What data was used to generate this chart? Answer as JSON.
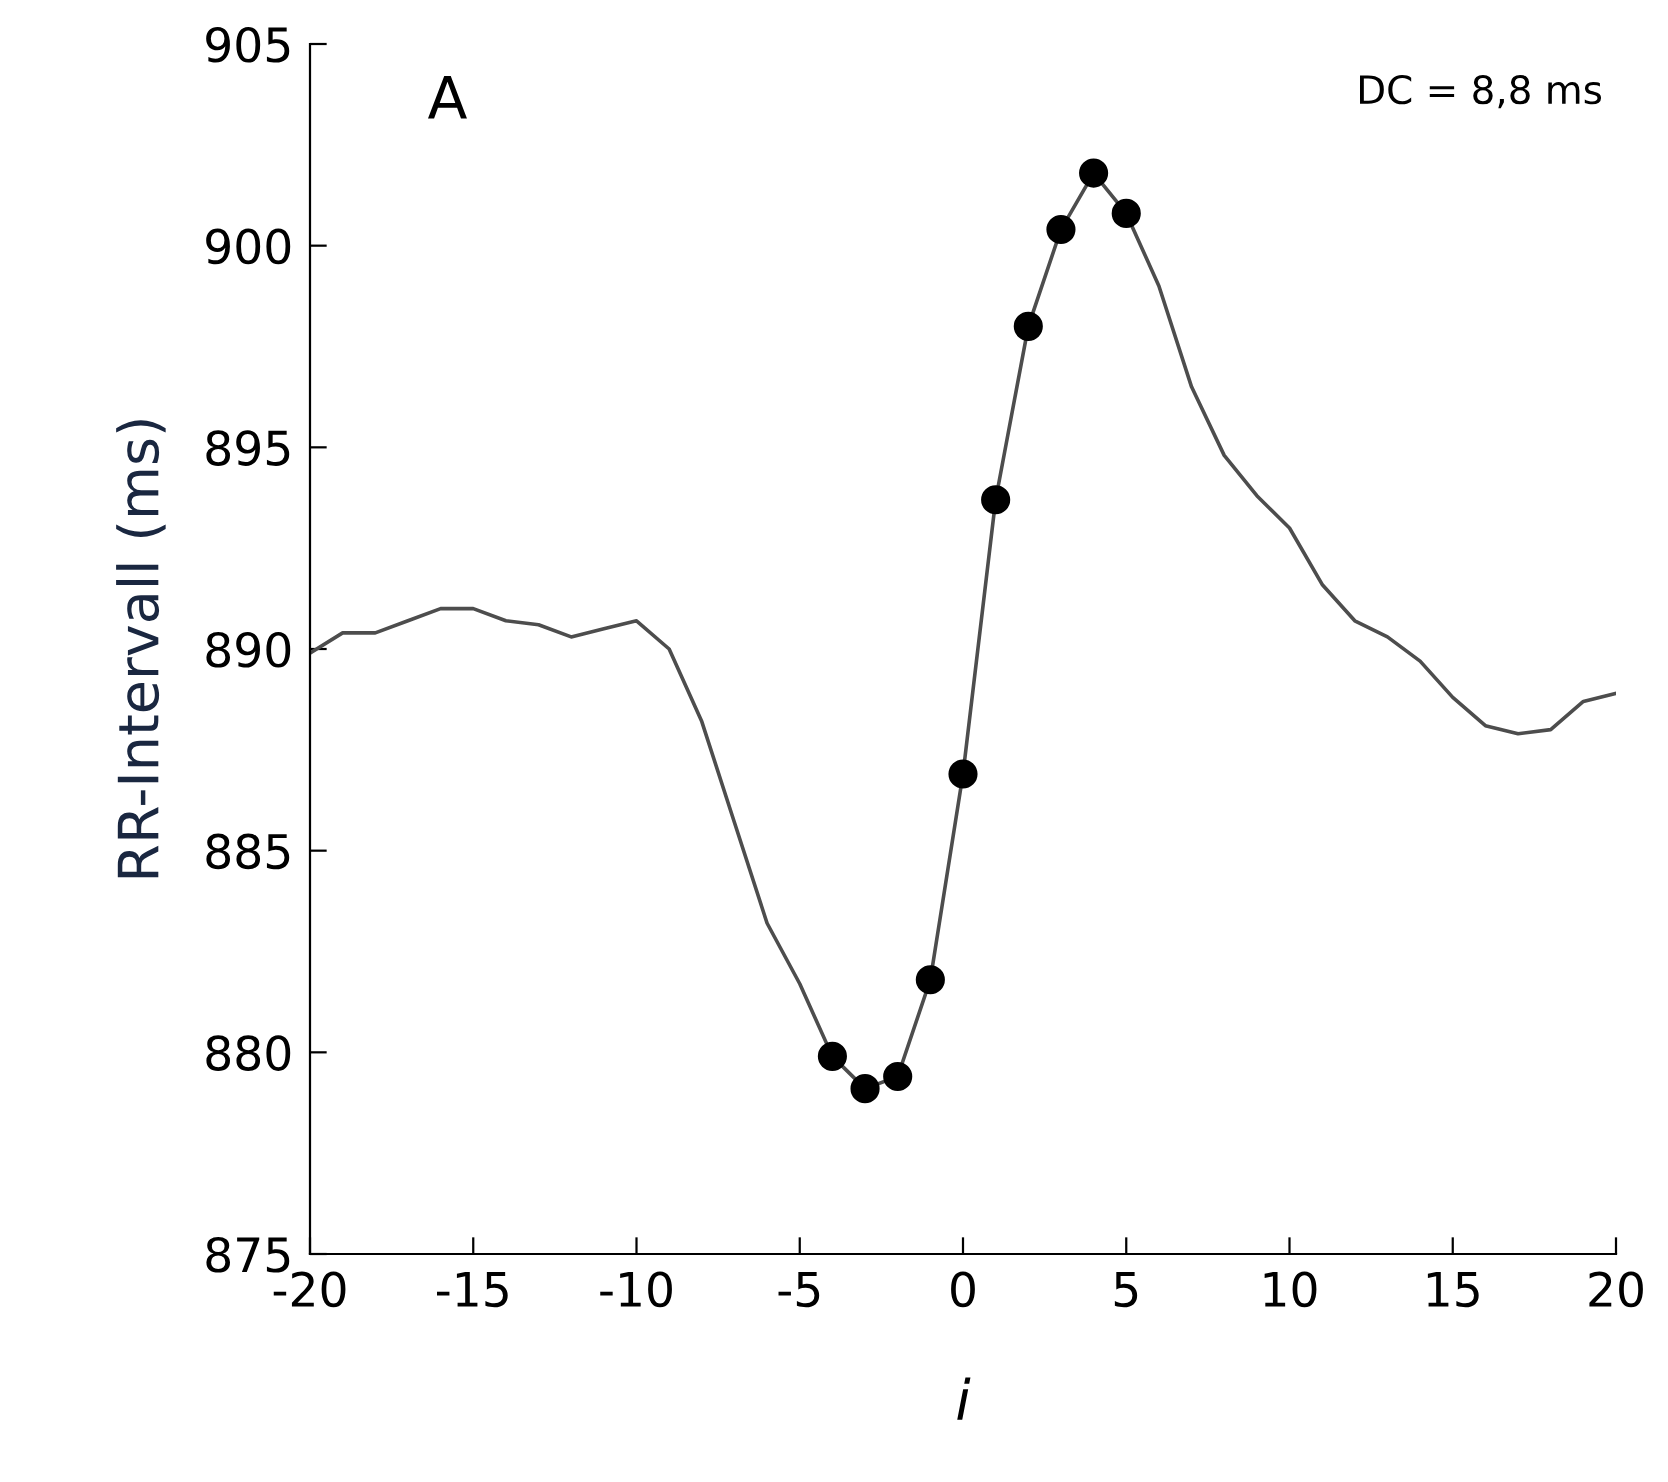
{
  "chart_data": {
    "type": "line",
    "xlabel": "i",
    "ylabel": "RR-Intervall (ms)",
    "annotations": [
      "A",
      "DC = 8,8 ms"
    ],
    "xlim": [
      -20,
      20
    ],
    "xticks": [
      -20,
      -15,
      -10,
      -5,
      0,
      5,
      10,
      15,
      20
    ],
    "ylim": [
      875,
      905
    ],
    "yticks": [
      875,
      880,
      885,
      890,
      895,
      900,
      905
    ],
    "grid": false,
    "legend": false,
    "series": [
      {
        "color": "#4d4d4d",
        "marker": "none",
        "x": [
          -20,
          -19,
          -18,
          -17,
          -16,
          -15,
          -14,
          -13,
          -12,
          -11,
          -10,
          -9,
          -8,
          -7,
          -6,
          -5,
          -4,
          -3,
          -2,
          -1,
          0,
          1,
          2,
          3,
          4,
          5,
          6,
          7,
          8,
          9,
          10,
          11,
          12,
          13,
          14,
          15,
          16,
          17,
          18,
          19,
          20
        ],
        "values": [
          889.9,
          890.4,
          890.4,
          890.7,
          891.0,
          891.0,
          890.7,
          890.6,
          890.3,
          890.5,
          890.7,
          890.0,
          888.2,
          885.7,
          883.2,
          881.7,
          879.9,
          879.1,
          879.4,
          881.8,
          886.9,
          893.7,
          898.0,
          900.4,
          901.8,
          900.8,
          899.0,
          896.5,
          894.8,
          893.8,
          893.0,
          891.6,
          890.7,
          890.3,
          889.7,
          888.8,
          888.1,
          887.9,
          888.0,
          888.7,
          888.9
        ]
      },
      {
        "type": "scatter",
        "color": "#000000",
        "marker": "circle",
        "x": [
          -4,
          -3,
          -2,
          -1,
          0,
          1,
          2,
          3,
          4,
          5
        ],
        "values": [
          879.9,
          879.1,
          879.4,
          881.8,
          886.9,
          893.7,
          898.0,
          900.4,
          901.8,
          900.8
        ]
      }
    ]
  }
}
